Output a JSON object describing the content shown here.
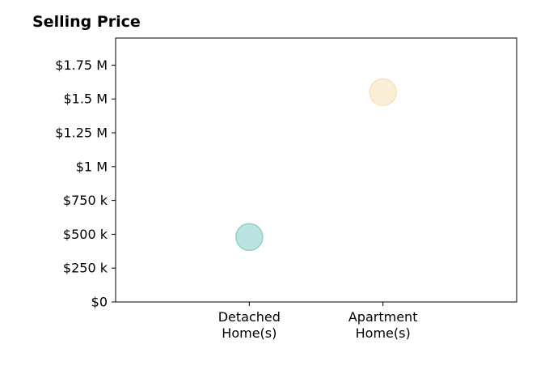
{
  "chart_data": {
    "type": "scatter",
    "title": "Selling Price",
    "xlabel": "",
    "ylabel": "",
    "categories": [
      [
        "Detached",
        "Home(s)"
      ],
      [
        "Apartment",
        "Home(s)"
      ]
    ],
    "x_range": [
      -1,
      2
    ],
    "ylim": [
      0,
      1950000
    ],
    "y_ticks": [
      {
        "value": 0,
        "label": "$0"
      },
      {
        "value": 250000,
        "label": "$250 k"
      },
      {
        "value": 500000,
        "label": "$500 k"
      },
      {
        "value": 750000,
        "label": "$750 k"
      },
      {
        "value": 1000000,
        "label": "$1 M"
      },
      {
        "value": 1250000,
        "label": "$1.25 M"
      },
      {
        "value": 1500000,
        "label": "$1.5 M"
      },
      {
        "value": 1750000,
        "label": "$1.75 M"
      }
    ],
    "points": [
      {
        "category_index": 0,
        "value": 480000,
        "color": "#8fd0cc"
      },
      {
        "category_index": 1,
        "value": 1550000,
        "color": "#f7e3bd"
      }
    ],
    "grid": false,
    "legend": "none"
  }
}
